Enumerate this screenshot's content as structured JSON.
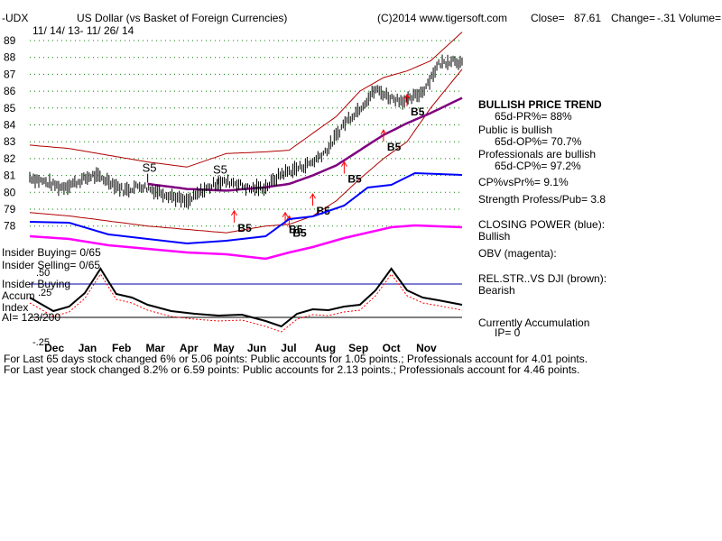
{
  "header": {
    "symbol": "-UDX",
    "name": "US Dollar (vs Basket of Foreign Currencies)",
    "copyright": "(C)2014 www.tigersoft.com",
    "close_label": "Close=",
    "close_value": "87.61",
    "change_label": "Change=",
    "change_value": "-.31",
    "volume_label": "Volume=",
    "date_range": "11/ 14/ 13- 11/ 26/ 14"
  },
  "left_labels": {
    "insider_buying": "Insider Buying= 0/65",
    "insider_selling": "Insider Selling= 0/65",
    "accum_line1": "Insider Buying",
    "accum_line2": "Accum",
    "accum_line3": "Index",
    "ai": "AI= 123/200",
    "ai_top": ".50",
    "ai_mid": ".25",
    "ai_bottom": "-.25"
  },
  "right_panel": {
    "trend_title": "BULLISH PRICE TREND",
    "pr": "65d-PR%= 88%",
    "public_title": "Public is bullish",
    "op": "65d-OP%= 70.7%",
    "pros_title": "Professionals are bullish",
    "cp": "65d-CP%= 97.2%",
    "cpvspr": "CP%vsPr%=  9.1%",
    "strength": "Strength Profess/Pub= 3.8",
    "closing_power_title": "CLOSING POWER (blue):",
    "closing_power_value": "Bullish",
    "obv": "OBV (magenta):",
    "relstr_title": "REL.STR..VS DJI (brown):",
    "relstr_value": "Bearish",
    "accum_title": "Currently Accumulation",
    "ip": "IP=  0"
  },
  "footer": {
    "line1": "For Last 65 days stock changed  6% or  5.06 points:  Public accounts for  1.05 points.;  Professionals account for  4.01 points.",
    "line2": "For Last year stock changed  8.2% or  6.59 points:  Public accounts for  2.13 points.;  Professionals account for  4.46 points."
  },
  "colors": {
    "price": "#000000",
    "bands": "#b00000",
    "ma": "#800080",
    "closing_power": "#0000ff",
    "obv": "#ff00ff",
    "ai_line": "#000000",
    "grid": "#008000",
    "signal": "#ff0000"
  },
  "chart_data": {
    "type": "line",
    "title": "US Dollar (vs Basket of Foreign Currencies)",
    "y_ticks": [
      78,
      79,
      80,
      81,
      82,
      83,
      84,
      85,
      86,
      87,
      88,
      89
    ],
    "ylim": [
      77.5,
      89.5
    ],
    "months": [
      "Dec",
      "Jan",
      "Feb",
      "Mar",
      "Apr",
      "May",
      "Jun",
      "Jul",
      "Aug",
      "Sep",
      "Oct",
      "Nov"
    ],
    "series": [
      {
        "name": "Price",
        "x": [
          0,
          4,
          8,
          12,
          16,
          20,
          24,
          28,
          32,
          36,
          40,
          44,
          48,
          52,
          56,
          60,
          64,
          68,
          72,
          76,
          80,
          84,
          88,
          92,
          96,
          100,
          104,
          108,
          110
        ],
        "values": [
          80.9,
          80.6,
          80.3,
          80.6,
          81.0,
          80.7,
          80.1,
          80.4,
          80.1,
          79.8,
          79.4,
          80.1,
          80.6,
          80.6,
          80.2,
          80.3,
          81.1,
          81.4,
          81.8,
          82.6,
          84.1,
          85.0,
          86.1,
          85.6,
          85.4,
          86.0,
          87.6,
          87.9,
          87.6
        ]
      },
      {
        "name": "Upper band",
        "x": [
          0,
          10,
          20,
          30,
          40,
          50,
          60,
          66,
          72,
          78,
          84,
          90,
          96,
          102,
          110
        ],
        "values": [
          82.8,
          82.6,
          82.2,
          81.8,
          81.5,
          82.3,
          82.4,
          82.5,
          83.5,
          84.5,
          86.0,
          86.8,
          87.2,
          87.8,
          89.5
        ]
      },
      {
        "name": "Lower band",
        "x": [
          0,
          10,
          20,
          30,
          40,
          50,
          60,
          66,
          72,
          78,
          84,
          90,
          96,
          102,
          110
        ],
        "values": [
          78.8,
          78.6,
          78.3,
          78.0,
          77.8,
          77.6,
          78.0,
          78.1,
          78.6,
          79.5,
          80.8,
          82.0,
          83.0,
          85.0,
          87.3
        ]
      },
      {
        "name": "Moving average",
        "x": [
          30,
          40,
          50,
          60,
          66,
          72,
          78,
          84,
          90,
          96,
          102,
          110
        ],
        "values": [
          80.5,
          80.2,
          80.1,
          80.3,
          80.5,
          81.0,
          81.6,
          82.5,
          83.4,
          84.1,
          84.7,
          85.6
        ]
      }
    ],
    "signals": [
      {
        "label": "S5",
        "x": 30,
        "y": 81.0
      },
      {
        "label": "S5",
        "x": 48,
        "y": 80.9
      },
      {
        "label": "B5",
        "x": 52,
        "y": 78.1
      },
      {
        "label": "B5",
        "x": 65,
        "y": 78.0
      },
      {
        "label": "B5",
        "x": 66,
        "y": 77.8
      },
      {
        "label": "B5",
        "x": 72,
        "y": 79.1
      },
      {
        "label": "B5",
        "x": 80,
        "y": 81.0
      },
      {
        "label": "B5",
        "x": 90,
        "y": 82.9
      },
      {
        "label": "B5",
        "x": 96,
        "y": 85.0
      }
    ]
  }
}
